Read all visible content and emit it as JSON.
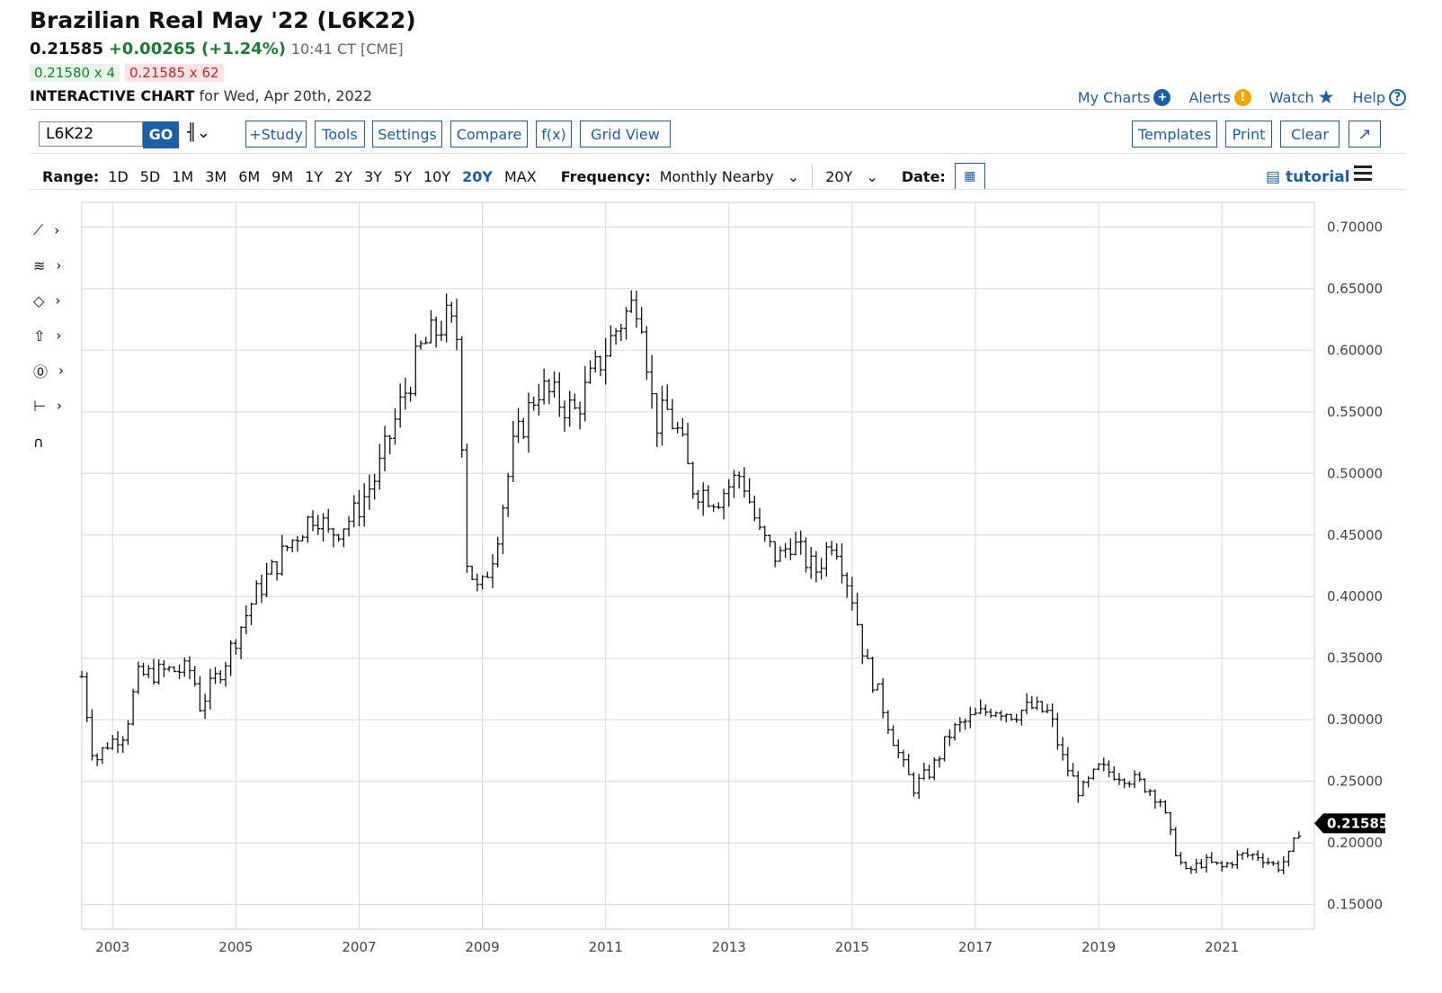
{
  "header": {
    "title": "Brazilian Real May '22 (L6K22)",
    "last": "0.21585",
    "change": "+0.00265 (+1.24%)",
    "time": "10:41 CT [CME]",
    "bid": "0.21580 x 4",
    "ask": "0.21585 x 62",
    "chart_label": "INTERACTIVE CHART",
    "chart_date": "for Wed, Apr 20th, 2022"
  },
  "links": {
    "my_charts": "My Charts",
    "alerts": "Alerts",
    "watch": "Watch",
    "help": "Help"
  },
  "toolbar": {
    "symbol": "L6K22",
    "go": "GO",
    "study": "+Study",
    "tools": "Tools",
    "settings": "Settings",
    "compare": "Compare",
    "fx": "f(x)",
    "grid_view": "Grid View",
    "templates": "Templates",
    "print": "Print",
    "clear": "Clear"
  },
  "rangebar": {
    "range_label": "Range:",
    "ranges": [
      "1D",
      "5D",
      "1M",
      "3M",
      "6M",
      "9M",
      "1Y",
      "2Y",
      "3Y",
      "5Y",
      "10Y",
      "20Y",
      "MAX"
    ],
    "active": "20Y",
    "frequency_label": "Frequency:",
    "frequency": "Monthly Nearby",
    "period": "20Y",
    "date_label": "Date:",
    "tutorial": "tutorial"
  },
  "colors": {
    "accent": "#1a5fa8",
    "up": "#1a7f2b",
    "down": "#c0282d",
    "bars": "#111111"
  },
  "chart_data": {
    "type": "ohlc",
    "title": "Brazilian Real May '22 (L6K22)",
    "frequency": "Monthly Nearby",
    "ylim": [
      0.13,
      0.72
    ],
    "yticks": [
      "0.70000",
      "0.65000",
      "0.60000",
      "0.55000",
      "0.50000",
      "0.45000",
      "0.40000",
      "0.35000",
      "0.30000",
      "0.25000",
      "0.20000",
      "0.15000"
    ],
    "xticks": [
      "2003",
      "2005",
      "2007",
      "2009",
      "2011",
      "2013",
      "2015",
      "2017",
      "2019",
      "2021"
    ],
    "x_range": [
      2002.5,
      2022.5
    ],
    "last_value_label": "0.21585",
    "last_value": 0.21585,
    "grid": true,
    "anchors": [
      [
        2002.5,
        0.335
      ],
      [
        2002.7,
        0.265
      ],
      [
        2002.9,
        0.28
      ],
      [
        2003.2,
        0.29
      ],
      [
        2003.4,
        0.335
      ],
      [
        2003.9,
        0.34
      ],
      [
        2004.3,
        0.34
      ],
      [
        2004.4,
        0.31
      ],
      [
        2004.8,
        0.345
      ],
      [
        2005.3,
        0.4
      ],
      [
        2005.9,
        0.445
      ],
      [
        2006.3,
        0.47
      ],
      [
        2006.5,
        0.45
      ],
      [
        2006.9,
        0.465
      ],
      [
        2007.3,
        0.5
      ],
      [
        2007.7,
        0.56
      ],
      [
        2008.0,
        0.6
      ],
      [
        2008.4,
        0.625
      ],
      [
        2008.6,
        0.61
      ],
      [
        2008.75,
        0.43
      ],
      [
        2008.95,
        0.4
      ],
      [
        2009.2,
        0.44
      ],
      [
        2009.5,
        0.52
      ],
      [
        2009.9,
        0.57
      ],
      [
        2010.2,
        0.56
      ],
      [
        2010.5,
        0.55
      ],
      [
        2010.9,
        0.59
      ],
      [
        2011.2,
        0.62
      ],
      [
        2011.55,
        0.645
      ],
      [
        2011.7,
        0.58
      ],
      [
        2011.8,
        0.54
      ],
      [
        2012.0,
        0.55
      ],
      [
        2012.2,
        0.53
      ],
      [
        2012.4,
        0.49
      ],
      [
        2012.8,
        0.48
      ],
      [
        2013.2,
        0.5
      ],
      [
        2013.5,
        0.45
      ],
      [
        2013.8,
        0.43
      ],
      [
        2014.0,
        0.445
      ],
      [
        2014.4,
        0.42
      ],
      [
        2014.7,
        0.45
      ],
      [
        2015.0,
        0.4
      ],
      [
        2015.2,
        0.35
      ],
      [
        2015.5,
        0.31
      ],
      [
        2015.8,
        0.265
      ],
      [
        2016.0,
        0.245
      ],
      [
        2016.3,
        0.26
      ],
      [
        2016.6,
        0.29
      ],
      [
        2016.9,
        0.3
      ],
      [
        2017.3,
        0.31
      ],
      [
        2017.6,
        0.305
      ],
      [
        2017.9,
        0.31
      ],
      [
        2018.2,
        0.305
      ],
      [
        2018.4,
        0.27
      ],
      [
        2018.7,
        0.24
      ],
      [
        2019.0,
        0.26
      ],
      [
        2019.4,
        0.255
      ],
      [
        2019.8,
        0.245
      ],
      [
        2020.0,
        0.235
      ],
      [
        2020.2,
        0.2
      ],
      [
        2020.4,
        0.175
      ],
      [
        2020.7,
        0.185
      ],
      [
        2021.0,
        0.18
      ],
      [
        2021.3,
        0.19
      ],
      [
        2021.6,
        0.19
      ],
      [
        2021.9,
        0.18
      ],
      [
        2022.1,
        0.19
      ],
      [
        2022.29,
        0.21585
      ]
    ]
  }
}
